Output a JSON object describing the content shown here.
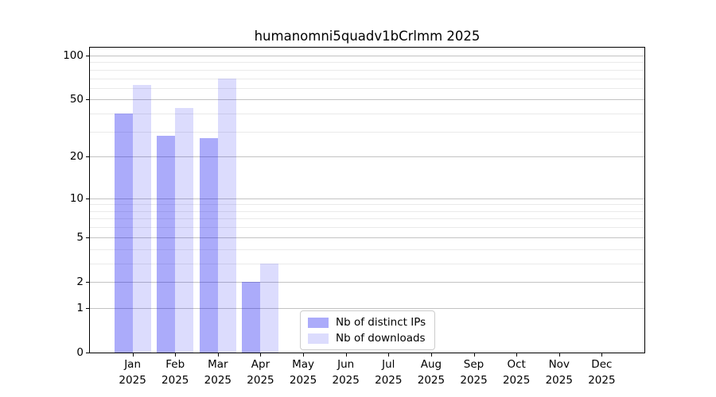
{
  "chart_data": {
    "type": "bar",
    "title": "humanomni5quadv1bCrlmm 2025",
    "year_label": "2025",
    "categories": [
      "Jan",
      "Feb",
      "Mar",
      "Apr",
      "May",
      "Jun",
      "Jul",
      "Aug",
      "Sep",
      "Oct",
      "Nov",
      "Dec"
    ],
    "series": [
      {
        "name": "Nb of distinct IPs",
        "color": "rgba(10,10,240,0.34)",
        "values": [
          40,
          28,
          27,
          2,
          0,
          0,
          0,
          0,
          0,
          0,
          0,
          0
        ]
      },
      {
        "name": "Nb of downloads",
        "color": "rgba(10,10,240,0.14)",
        "values": [
          63,
          44,
          70,
          3,
          0,
          0,
          0,
          0,
          0,
          0,
          0,
          0
        ]
      }
    ],
    "yscale": "log1p",
    "yticks": [
      0,
      1,
      2,
      5,
      10,
      20,
      50,
      100
    ],
    "yticks_minor": [
      3,
      4,
      6,
      7,
      8,
      9,
      30,
      40,
      60,
      70,
      80,
      90
    ],
    "ylim": [
      0,
      113.3
    ],
    "xlabel": "",
    "ylabel": "",
    "grid": true,
    "legend_position": "lower center"
  },
  "colors": {
    "grid_major": "#c3c3c3",
    "grid_minor": "#eaeaea",
    "spine": "#000000",
    "text": "#000000",
    "legend_border": "#cccccc",
    "background": "#ffffff"
  }
}
